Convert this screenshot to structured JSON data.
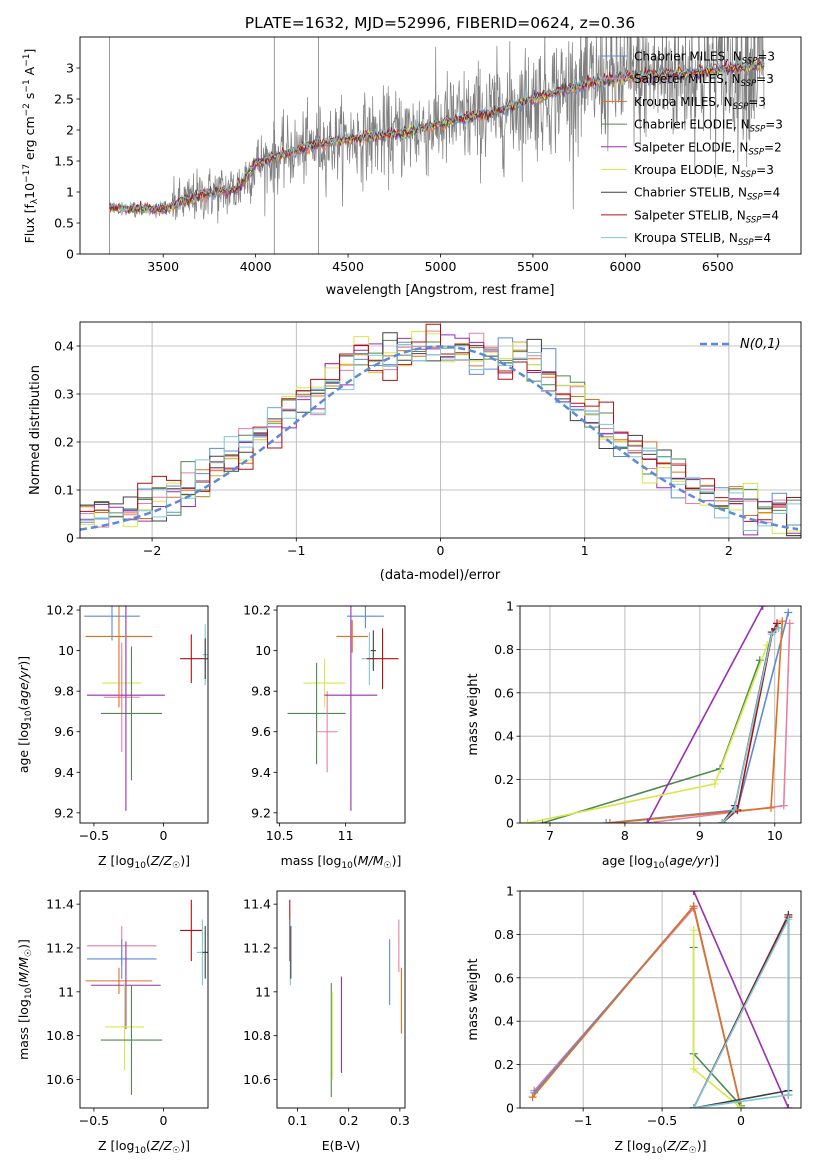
{
  "chart_data": [
    {
      "id": "spectrum",
      "type": "line",
      "title": "PLATE=1632, MJD=52996, FIBERID=0624, z=0.36",
      "xlabel": "wavelength [Angstrom, rest frame]",
      "ylabel": "Flux [f_λ 10^-17 erg cm^-2 s^-1 A^-1]",
      "xlim": [
        3050,
        6950
      ],
      "ylim": [
        0,
        3.5
      ],
      "xticks": [
        3500,
        4000,
        4500,
        5000,
        5500,
        6000,
        6500
      ],
      "yticks": [
        0.0,
        0.5,
        1.0,
        1.5,
        2.0,
        2.5,
        3.0
      ],
      "data_wavelength_range": [
        3210,
        6750
      ],
      "legend_position": "upper-right",
      "continuum": {
        "x": [
          3210,
          3300,
          3500,
          3700,
          3900,
          4000,
          4300,
          4500,
          4800,
          5000,
          5300,
          5500,
          5800,
          6000,
          6300,
          6600,
          6750
        ],
        "y": [
          0.75,
          0.73,
          0.72,
          0.95,
          1.05,
          1.45,
          1.75,
          1.85,
          1.95,
          2.1,
          2.3,
          2.5,
          2.75,
          2.85,
          2.9,
          3.0,
          3.05
        ]
      },
      "series": [
        {
          "label": "Chabrier MILES, N_SSP=3",
          "color": "#5b8bd8"
        },
        {
          "label": "Salpeter MILES, N_SSP=3",
          "color": "#e87fa6"
        },
        {
          "label": "Kroupa MILES, N_SSP=3",
          "color": "#e07020"
        },
        {
          "label": "Chabrier ELODIE, N_SSP=3",
          "color": "#4f8a4f"
        },
        {
          "label": "Salpeter ELODIE, N_SSP=2",
          "color": "#9a2fb0"
        },
        {
          "label": "Kroupa ELODIE, N_SSP=3",
          "color": "#d8e84a"
        },
        {
          "label": "Chabrier STELIB, N_SSP=4",
          "color": "#404040"
        },
        {
          "label": "Salpeter STELIB, N_SSP=4",
          "color": "#b01010"
        },
        {
          "label": "Kroupa STELIB, N_SSP=4",
          "color": "#7fc8d8"
        }
      ]
    },
    {
      "id": "residuals",
      "type": "line",
      "xlabel": "(data-model)/error",
      "ylabel": "Normed distribution",
      "xlim": [
        -2.5,
        2.5
      ],
      "ylim": [
        0,
        0.45
      ],
      "xticks": [
        -2,
        -1,
        0,
        1,
        2
      ],
      "yticks": [
        0.0,
        0.1,
        0.2,
        0.3,
        0.4
      ],
      "grid": true,
      "legend_position": "upper-right",
      "legend": "N(0,1)",
      "reference_curve": {
        "name": "N(0,1)",
        "mean": 0,
        "sigma": 1,
        "color": "#5b8bd8"
      },
      "histogram": {
        "bin_width": 0.1,
        "range": [
          -2.5,
          2.5
        ]
      }
    },
    {
      "id": "age_vs_Z",
      "type": "scatter",
      "xlabel": "Z [log10(Z/Z☉)]",
      "ylabel": "age [log10(age/yr)]",
      "xlim": [
        -0.6,
        0.32
      ],
      "ylim": [
        9.15,
        10.22
      ],
      "xticks": [
        -0.5,
        0.0
      ],
      "yticks": [
        9.2,
        9.4,
        9.6,
        9.8,
        10.0,
        10.2
      ],
      "points": [
        {
          "x": -0.3,
          "y": 9.84,
          "xerr": 0.14,
          "yerr": 0.12,
          "color": "#d8e84a"
        },
        {
          "x": -0.3,
          "y": 9.77,
          "xerr": 0.13,
          "yerr": 0.27,
          "color": "#e87fa6"
        },
        {
          "x": -0.23,
          "y": 9.69,
          "xerr": 0.22,
          "yerr": 0.33,
          "color": "#4f8a4f"
        },
        {
          "x": -0.27,
          "y": 9.78,
          "xerr": 0.28,
          "yerr": 0.57,
          "color": "#9a2fb0"
        },
        {
          "x": -0.32,
          "y": 10.07,
          "xerr": 0.24,
          "yerr": 0.35,
          "color": "#e07020"
        },
        {
          "x": -0.37,
          "y": 10.17,
          "xerr": 0.2,
          "yerr": 0.12,
          "color": "#5b8bd8"
        },
        {
          "x": 0.2,
          "y": 9.96,
          "xerr": 0.08,
          "yerr": 0.12,
          "color": "#b01010"
        },
        {
          "x": 0.3,
          "y": 9.98,
          "xerr": 0.02,
          "yerr": 0.15,
          "color": "#7fc8d8"
        },
        {
          "x": 0.3,
          "y": 9.96,
          "xerr": 0.02,
          "yerr": 0.1,
          "color": "#404040"
        }
      ]
    },
    {
      "id": "age_vs_mass",
      "type": "scatter",
      "xlabel": "mass [log10(M/M☉)]",
      "ylabel": "",
      "xlim": [
        10.48,
        11.45
      ],
      "ylim": [
        9.15,
        10.22
      ],
      "xticks": [
        10.5,
        11.0
      ],
      "yticks": [
        9.2,
        9.4,
        9.6,
        9.8,
        10.0,
        10.2
      ],
      "points": [
        {
          "x": 10.84,
          "y": 9.84,
          "xerr": 0.16,
          "yerr": 0.12,
          "color": "#d8e84a"
        },
        {
          "x": 10.78,
          "y": 9.69,
          "xerr": 0.22,
          "yerr": 0.25,
          "color": "#4f8a4f"
        },
        {
          "x": 10.86,
          "y": 9.6,
          "xerr": 0.08,
          "yerr": 0.2,
          "color": "#e87fa6"
        },
        {
          "x": 11.04,
          "y": 9.78,
          "xerr": 0.2,
          "yerr": 0.57,
          "color": "#9a2fb0"
        },
        {
          "x": 11.05,
          "y": 10.07,
          "xerr": 0.12,
          "yerr": 0.08,
          "color": "#e07020"
        },
        {
          "x": 11.15,
          "y": 10.17,
          "xerr": 0.14,
          "yerr": 0.06,
          "color": "#5b8bd8"
        },
        {
          "x": 11.18,
          "y": 9.96,
          "xerr": 0.06,
          "yerr": 0.13,
          "color": "#7fc8d8"
        },
        {
          "x": 11.28,
          "y": 9.96,
          "xerr": 0.12,
          "yerr": 0.15,
          "color": "#b01010"
        },
        {
          "x": 11.21,
          "y": 10.0,
          "xerr": 0.02,
          "yerr": 0.1,
          "color": "#404040"
        }
      ]
    },
    {
      "id": "weight_vs_age",
      "type": "line",
      "xlabel": "age [log10(age/yr)]",
      "ylabel": "mass weight",
      "xlim": [
        6.6,
        10.35
      ],
      "ylim": [
        0,
        1.0
      ],
      "xticks": [
        7,
        8,
        9,
        10
      ],
      "yticks": [
        0.0,
        0.2,
        0.4,
        0.6,
        0.8,
        1.0
      ],
      "grid": true,
      "series": [
        {
          "color": "#5b8bd8",
          "x": [
            7.75,
            9.5,
            10.18
          ],
          "y": [
            0.0,
            0.06,
            0.97
          ]
        },
        {
          "color": "#e87fa6",
          "x": [
            8.3,
            10.12,
            10.2
          ],
          "y": [
            0.0,
            0.08,
            0.92
          ]
        },
        {
          "color": "#e07020",
          "x": [
            7.8,
            9.95,
            10.1
          ],
          "y": [
            0.0,
            0.07,
            0.93
          ]
        },
        {
          "color": "#4f8a4f",
          "x": [
            6.9,
            9.27,
            9.8
          ],
          "y": [
            0.0,
            0.25,
            0.75
          ]
        },
        {
          "color": "#9a2fb0",
          "x": [
            8.3,
            9.84
          ],
          "y": [
            0.0,
            1.0
          ]
        },
        {
          "color": "#d8e84a",
          "x": [
            6.7,
            9.2,
            9.9
          ],
          "y": [
            0.0,
            0.18,
            0.82
          ]
        },
        {
          "color": "#404040",
          "x": [
            9.3,
            9.47,
            9.96,
            10.05
          ],
          "y": [
            0.0,
            0.08,
            0.88,
            0.9
          ]
        },
        {
          "color": "#b01010",
          "x": [
            9.3,
            9.5,
            9.97,
            10.03
          ],
          "y": [
            0.0,
            0.06,
            0.88,
            0.92
          ]
        },
        {
          "color": "#7fc8d8",
          "x": [
            9.3,
            9.46,
            9.96,
            10.05
          ],
          "y": [
            0.0,
            0.06,
            0.87,
            0.9
          ]
        }
      ]
    },
    {
      "id": "mass_vs_Z",
      "type": "scatter",
      "xlabel": "Z [log10(Z/Z☉)]",
      "ylabel": "mass [log10(M/M☉)]",
      "xlim": [
        -0.6,
        0.32
      ],
      "ylim": [
        10.47,
        11.46
      ],
      "xticks": [
        -0.5,
        0.0
      ],
      "yticks": [
        10.6,
        10.8,
        11.0,
        11.2,
        11.4
      ],
      "points": [
        {
          "x": -0.3,
          "y": 11.21,
          "xerr": 0.25,
          "yerr": 0.09,
          "color": "#e87fa6"
        },
        {
          "x": -0.3,
          "y": 11.15,
          "xerr": 0.25,
          "yerr": 0.09,
          "color": "#5b8bd8"
        },
        {
          "x": -0.32,
          "y": 11.05,
          "xerr": 0.24,
          "yerr": 0.06,
          "color": "#e07020"
        },
        {
          "x": -0.27,
          "y": 11.03,
          "xerr": 0.25,
          "yerr": 0.2,
          "color": "#9a2fb0"
        },
        {
          "x": -0.28,
          "y": 10.84,
          "xerr": 0.14,
          "yerr": 0.2,
          "color": "#d8e84a"
        },
        {
          "x": -0.23,
          "y": 10.78,
          "xerr": 0.22,
          "yerr": 0.25,
          "color": "#4f8a4f"
        },
        {
          "x": 0.2,
          "y": 11.28,
          "xerr": 0.08,
          "yerr": 0.14,
          "color": "#b01010"
        },
        {
          "x": 0.28,
          "y": 11.18,
          "xerr": 0.04,
          "yerr": 0.15,
          "color": "#7fc8d8"
        },
        {
          "x": 0.3,
          "y": 11.18,
          "xerr": 0.02,
          "yerr": 0.12,
          "color": "#404040"
        }
      ]
    },
    {
      "id": "mass_vs_ebv",
      "type": "scatter",
      "xlabel": "E(B-V)",
      "ylabel": "",
      "xlim": [
        0.06,
        0.31
      ],
      "ylim": [
        10.47,
        11.46
      ],
      "xticks": [
        0.1,
        0.2,
        0.3
      ],
      "yticks": [
        10.6,
        10.8,
        11.0,
        11.2,
        11.4
      ],
      "points": [
        {
          "x": 0.085,
          "y": 11.28,
          "yerr": 0.14,
          "color": "#b01010"
        },
        {
          "x": 0.086,
          "y": 11.18,
          "yerr": 0.15,
          "color": "#7fc8d8"
        },
        {
          "x": 0.087,
          "y": 11.18,
          "yerr": 0.12,
          "color": "#404040"
        },
        {
          "x": 0.166,
          "y": 10.78,
          "yerr": 0.26,
          "color": "#4f8a4f"
        },
        {
          "x": 0.168,
          "y": 10.8,
          "yerr": 0.2,
          "color": "#d8e84a"
        },
        {
          "x": 0.186,
          "y": 10.85,
          "yerr": 0.22,
          "color": "#9a2fb0"
        },
        {
          "x": 0.28,
          "y": 11.09,
          "yerr": 0.15,
          "color": "#5b8bd8"
        },
        {
          "x": 0.298,
          "y": 11.21,
          "yerr": 0.12,
          "color": "#e87fa6"
        },
        {
          "x": 0.303,
          "y": 10.96,
          "yerr": 0.15,
          "color": "#e07020"
        }
      ]
    },
    {
      "id": "weight_vs_Z",
      "type": "line",
      "xlabel": "Z [log10(Z/Z☉)]",
      "ylabel": "mass weight",
      "xlim": [
        -1.4,
        0.38
      ],
      "ylim": [
        0,
        1.0
      ],
      "xticks": [
        -1.0,
        -0.5,
        0.0
      ],
      "yticks": [
        0.0,
        0.2,
        0.4,
        0.6,
        0.8,
        1.0
      ],
      "grid": true,
      "series": [
        {
          "color": "#e87fa6",
          "x": [
            -1.31,
            -0.3,
            0.0
          ],
          "y": [
            0.08,
            0.92,
            0.0
          ]
        },
        {
          "color": "#5b8bd8",
          "x": [
            -1.31,
            -0.3,
            0.0
          ],
          "y": [
            0.07,
            0.93,
            0.0
          ]
        },
        {
          "color": "#e07020",
          "x": [
            -1.32,
            -0.3,
            0.0
          ],
          "y": [
            0.05,
            0.93,
            0.0
          ]
        },
        {
          "color": "#4f8a4f",
          "x": [
            -0.3,
            -0.3,
            0.0
          ],
          "y": [
            0.74,
            0.25,
            0.01
          ]
        },
        {
          "color": "#9a2fb0",
          "x": [
            -0.3,
            0.3
          ],
          "y": [
            1.0,
            0.0
          ]
        },
        {
          "color": "#d8e84a",
          "x": [
            -0.3,
            -0.3,
            0.0
          ],
          "y": [
            0.82,
            0.18,
            0.0
          ]
        },
        {
          "color": "#404040",
          "x": [
            -0.3,
            0.3,
            0.3,
            -0.3
          ],
          "y": [
            0.0,
            0.89,
            0.08,
            0.0
          ]
        },
        {
          "color": "#b01010",
          "x": [
            -0.3,
            0.3,
            0.3
          ],
          "y": [
            0.0,
            0.88,
            0.06
          ]
        },
        {
          "color": "#7fc8d8",
          "x": [
            -0.3,
            0.3,
            0.3,
            -0.3
          ],
          "y": [
            0.0,
            0.87,
            0.06,
            0.0
          ]
        }
      ]
    }
  ]
}
